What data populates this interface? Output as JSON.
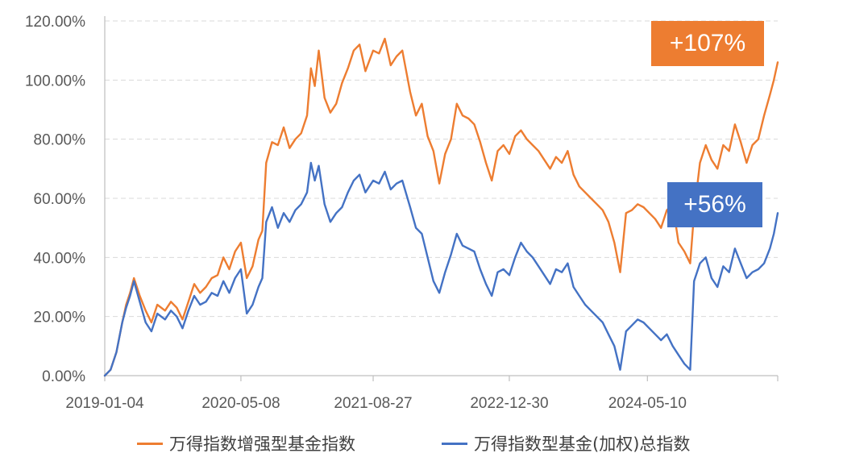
{
  "chart_data": {
    "type": "line",
    "x_ticks": [
      "2019-01-04",
      "2020-05-08",
      "2021-08-27",
      "2022-12-30",
      "2024-05-10"
    ],
    "y_ticks": [
      "0.00%",
      "20.00%",
      "40.00%",
      "60.00%",
      "80.00%",
      "100.00%",
      "120.00%"
    ],
    "ylim": [
      0,
      120
    ],
    "xlim": [
      "2019-01-04",
      "2025-08-22"
    ],
    "grid": true,
    "legend_position": "bottom",
    "series": [
      {
        "name": "万得指数增强型基金指数",
        "color": "#ED7D31",
        "end_label": "+107%",
        "points": [
          [
            "2019-01-04",
            0
          ],
          [
            "2019-01-25",
            2
          ],
          [
            "2019-02-15",
            8
          ],
          [
            "2019-03-08",
            18
          ],
          [
            "2019-03-22",
            24
          ],
          [
            "2019-04-05",
            28
          ],
          [
            "2019-04-19",
            33
          ],
          [
            "2019-05-10",
            27
          ],
          [
            "2019-05-31",
            22
          ],
          [
            "2019-06-21",
            18
          ],
          [
            "2019-07-12",
            24
          ],
          [
            "2019-08-09",
            22
          ],
          [
            "2019-08-30",
            25
          ],
          [
            "2019-09-20",
            23
          ],
          [
            "2019-10-11",
            19
          ],
          [
            "2019-11-01",
            25
          ],
          [
            "2019-11-22",
            31
          ],
          [
            "2019-12-13",
            28
          ],
          [
            "2020-01-03",
            30
          ],
          [
            "2020-01-24",
            33
          ],
          [
            "2020-02-14",
            34
          ],
          [
            "2020-03-06",
            40
          ],
          [
            "2020-03-27",
            36
          ],
          [
            "2020-04-17",
            42
          ],
          [
            "2020-05-08",
            45
          ],
          [
            "2020-05-29",
            33
          ],
          [
            "2020-06-19",
            37
          ],
          [
            "2020-07-10",
            46
          ],
          [
            "2020-07-24",
            49
          ],
          [
            "2020-08-07",
            72
          ],
          [
            "2020-08-28",
            79
          ],
          [
            "2020-09-18",
            78
          ],
          [
            "2020-10-09",
            84
          ],
          [
            "2020-10-30",
            77
          ],
          [
            "2020-11-20",
            80
          ],
          [
            "2020-12-11",
            82
          ],
          [
            "2021-01-01",
            88
          ],
          [
            "2021-01-15",
            104
          ],
          [
            "2021-01-29",
            98
          ],
          [
            "2021-02-12",
            110
          ],
          [
            "2021-03-05",
            94
          ],
          [
            "2021-03-26",
            89
          ],
          [
            "2021-04-16",
            92
          ],
          [
            "2021-05-07",
            99
          ],
          [
            "2021-05-28",
            104
          ],
          [
            "2021-06-18",
            110
          ],
          [
            "2021-07-09",
            112
          ],
          [
            "2021-07-30",
            103
          ],
          [
            "2021-08-27",
            110
          ],
          [
            "2021-09-17",
            109
          ],
          [
            "2021-10-08",
            114
          ],
          [
            "2021-10-29",
            105
          ],
          [
            "2021-11-19",
            108
          ],
          [
            "2021-12-10",
            110
          ],
          [
            "2022-01-07",
            96
          ],
          [
            "2022-01-28",
            88
          ],
          [
            "2022-02-18",
            92
          ],
          [
            "2022-03-11",
            81
          ],
          [
            "2022-04-01",
            76
          ],
          [
            "2022-04-22",
            65
          ],
          [
            "2022-05-13",
            75
          ],
          [
            "2022-06-03",
            80
          ],
          [
            "2022-06-24",
            92
          ],
          [
            "2022-07-15",
            88
          ],
          [
            "2022-08-05",
            87
          ],
          [
            "2022-08-26",
            85
          ],
          [
            "2022-09-16",
            79
          ],
          [
            "2022-10-07",
            72
          ],
          [
            "2022-10-28",
            66
          ],
          [
            "2022-11-18",
            76
          ],
          [
            "2022-12-09",
            78
          ],
          [
            "2022-12-30",
            75
          ],
          [
            "2023-01-20",
            81
          ],
          [
            "2023-02-10",
            83
          ],
          [
            "2023-03-03",
            80
          ],
          [
            "2023-03-24",
            78
          ],
          [
            "2023-04-14",
            76
          ],
          [
            "2023-05-05",
            73
          ],
          [
            "2023-05-26",
            70
          ],
          [
            "2023-06-16",
            74
          ],
          [
            "2023-07-07",
            72
          ],
          [
            "2023-07-28",
            76
          ],
          [
            "2023-08-18",
            68
          ],
          [
            "2023-09-08",
            64
          ],
          [
            "2023-09-29",
            62
          ],
          [
            "2023-10-20",
            60
          ],
          [
            "2023-11-10",
            58
          ],
          [
            "2023-12-01",
            56
          ],
          [
            "2023-12-22",
            52
          ],
          [
            "2024-01-12",
            45
          ],
          [
            "2024-02-02",
            35
          ],
          [
            "2024-02-23",
            55
          ],
          [
            "2024-03-15",
            56
          ],
          [
            "2024-04-05",
            58
          ],
          [
            "2024-04-26",
            57
          ],
          [
            "2024-05-17",
            55
          ],
          [
            "2024-06-07",
            53
          ],
          [
            "2024-06-28",
            50
          ],
          [
            "2024-07-19",
            56
          ],
          [
            "2024-08-09",
            58
          ],
          [
            "2024-08-30",
            45
          ],
          [
            "2024-09-20",
            42
          ],
          [
            "2024-10-11",
            38
          ],
          [
            "2024-10-25",
            55
          ],
          [
            "2024-11-15",
            72
          ],
          [
            "2024-12-06",
            78
          ],
          [
            "2024-12-27",
            73
          ],
          [
            "2025-01-17",
            70
          ],
          [
            "2025-02-07",
            78
          ],
          [
            "2025-02-28",
            76
          ],
          [
            "2025-03-21",
            85
          ],
          [
            "2025-04-11",
            79
          ],
          [
            "2025-05-02",
            72
          ],
          [
            "2025-05-23",
            78
          ],
          [
            "2025-06-13",
            80
          ],
          [
            "2025-07-04",
            88
          ],
          [
            "2025-07-25",
            95
          ],
          [
            "2025-08-08",
            100
          ],
          [
            "2025-08-22",
            106
          ]
        ]
      },
      {
        "name": "万得指数型基金(加权)总指数",
        "color": "#4472C4",
        "end_label": "+56%",
        "points": [
          [
            "2019-01-04",
            0
          ],
          [
            "2019-01-25",
            2
          ],
          [
            "2019-02-15",
            8
          ],
          [
            "2019-03-08",
            18
          ],
          [
            "2019-03-22",
            23
          ],
          [
            "2019-04-05",
            27
          ],
          [
            "2019-04-19",
            32
          ],
          [
            "2019-05-10",
            25
          ],
          [
            "2019-05-31",
            18
          ],
          [
            "2019-06-21",
            15
          ],
          [
            "2019-07-12",
            21
          ],
          [
            "2019-08-09",
            19
          ],
          [
            "2019-08-30",
            22
          ],
          [
            "2019-09-20",
            20
          ],
          [
            "2019-10-11",
            16
          ],
          [
            "2019-11-01",
            22
          ],
          [
            "2019-11-22",
            27
          ],
          [
            "2019-12-13",
            24
          ],
          [
            "2020-01-03",
            25
          ],
          [
            "2020-01-24",
            28
          ],
          [
            "2020-02-14",
            27
          ],
          [
            "2020-03-06",
            32
          ],
          [
            "2020-03-27",
            28
          ],
          [
            "2020-04-17",
            33
          ],
          [
            "2020-05-08",
            36
          ],
          [
            "2020-05-29",
            21
          ],
          [
            "2020-06-19",
            24
          ],
          [
            "2020-07-10",
            30
          ],
          [
            "2020-07-24",
            33
          ],
          [
            "2020-08-07",
            52
          ],
          [
            "2020-08-28",
            57
          ],
          [
            "2020-09-18",
            50
          ],
          [
            "2020-10-09",
            55
          ],
          [
            "2020-10-30",
            52
          ],
          [
            "2020-11-20",
            56
          ],
          [
            "2020-12-11",
            58
          ],
          [
            "2021-01-01",
            62
          ],
          [
            "2021-01-15",
            72
          ],
          [
            "2021-01-29",
            66
          ],
          [
            "2021-02-12",
            71
          ],
          [
            "2021-03-05",
            58
          ],
          [
            "2021-03-26",
            52
          ],
          [
            "2021-04-16",
            55
          ],
          [
            "2021-05-07",
            57
          ],
          [
            "2021-05-28",
            62
          ],
          [
            "2021-06-18",
            66
          ],
          [
            "2021-07-09",
            68
          ],
          [
            "2021-07-30",
            62
          ],
          [
            "2021-08-27",
            66
          ],
          [
            "2021-09-17",
            65
          ],
          [
            "2021-10-08",
            69
          ],
          [
            "2021-10-29",
            63
          ],
          [
            "2021-11-19",
            65
          ],
          [
            "2021-12-10",
            66
          ],
          [
            "2022-01-07",
            57
          ],
          [
            "2022-01-28",
            50
          ],
          [
            "2022-02-18",
            48
          ],
          [
            "2022-03-11",
            40
          ],
          [
            "2022-04-01",
            32
          ],
          [
            "2022-04-22",
            28
          ],
          [
            "2022-05-13",
            35
          ],
          [
            "2022-06-03",
            41
          ],
          [
            "2022-06-24",
            48
          ],
          [
            "2022-07-15",
            44
          ],
          [
            "2022-08-05",
            43
          ],
          [
            "2022-08-26",
            42
          ],
          [
            "2022-09-16",
            36
          ],
          [
            "2022-10-07",
            31
          ],
          [
            "2022-10-28",
            27
          ],
          [
            "2022-11-18",
            35
          ],
          [
            "2022-12-09",
            36
          ],
          [
            "2022-12-30",
            34
          ],
          [
            "2023-01-20",
            40
          ],
          [
            "2023-02-10",
            45
          ],
          [
            "2023-03-03",
            42
          ],
          [
            "2023-03-24",
            40
          ],
          [
            "2023-04-14",
            37
          ],
          [
            "2023-05-05",
            34
          ],
          [
            "2023-05-26",
            31
          ],
          [
            "2023-06-16",
            36
          ],
          [
            "2023-07-07",
            35
          ],
          [
            "2023-07-28",
            38
          ],
          [
            "2023-08-18",
            30
          ],
          [
            "2023-09-08",
            27
          ],
          [
            "2023-09-29",
            24
          ],
          [
            "2023-10-20",
            22
          ],
          [
            "2023-11-10",
            20
          ],
          [
            "2023-12-01",
            18
          ],
          [
            "2023-12-22",
            14
          ],
          [
            "2024-01-12",
            10
          ],
          [
            "2024-02-02",
            2
          ],
          [
            "2024-02-23",
            15
          ],
          [
            "2024-03-15",
            17
          ],
          [
            "2024-04-05",
            19
          ],
          [
            "2024-04-26",
            18
          ],
          [
            "2024-05-17",
            16
          ],
          [
            "2024-06-07",
            14
          ],
          [
            "2024-06-28",
            12
          ],
          [
            "2024-07-19",
            14
          ],
          [
            "2024-08-09",
            10
          ],
          [
            "2024-08-30",
            7
          ],
          [
            "2024-09-20",
            4
          ],
          [
            "2024-10-11",
            2
          ],
          [
            "2024-10-25",
            32
          ],
          [
            "2024-11-15",
            38
          ],
          [
            "2024-12-06",
            40
          ],
          [
            "2024-12-27",
            33
          ],
          [
            "2025-01-17",
            30
          ],
          [
            "2025-02-07",
            37
          ],
          [
            "2025-02-28",
            35
          ],
          [
            "2025-03-21",
            43
          ],
          [
            "2025-04-11",
            38
          ],
          [
            "2025-05-02",
            33
          ],
          [
            "2025-05-23",
            35
          ],
          [
            "2025-06-13",
            36
          ],
          [
            "2025-07-04",
            38
          ],
          [
            "2025-07-25",
            43
          ],
          [
            "2025-08-08",
            48
          ],
          [
            "2025-08-22",
            55
          ]
        ]
      }
    ]
  }
}
